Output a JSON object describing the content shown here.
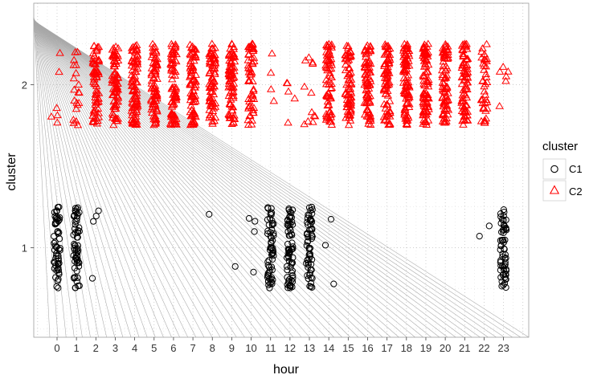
{
  "chart_data": {
    "type": "scatter",
    "xlabel": "hour",
    "ylabel": "cluster",
    "x_ticks": [
      "0",
      "1",
      "2",
      "3",
      "4",
      "5",
      "6",
      "7",
      "8",
      "9",
      "10",
      "11",
      "12",
      "13",
      "14",
      "15",
      "16",
      "17",
      "18",
      "19",
      "20",
      "21",
      "22",
      "23"
    ],
    "y_ticks": [
      "1",
      "2"
    ],
    "xlim": [
      -1.2,
      24.3
    ],
    "ylim": [
      0.45,
      2.5
    ],
    "grid": true,
    "jitter": {
      "x": 0.32,
      "y": 0.25
    },
    "legend": {
      "title": "cluster",
      "position": "right",
      "entries": [
        {
          "label": "C1",
          "shape": "circle",
          "color": "#000000"
        },
        {
          "label": "C2",
          "shape": "triangle",
          "color": "#ff0000"
        }
      ]
    },
    "series": [
      {
        "name": "C1",
        "y": 1,
        "color": "#000000",
        "shape": "circle",
        "counts_by_hour": {
          "0": 60,
          "1": 60,
          "2": 4,
          "8": 1,
          "9": 1,
          "10": 4,
          "11": 60,
          "12": 70,
          "13": 60,
          "14": 3,
          "22": 2,
          "23": 60
        }
      },
      {
        "name": "C2",
        "y": 2,
        "color": "#ff0000",
        "shape": "triangle",
        "counts_by_hour": {
          "0": 6,
          "1": 20,
          "2": 70,
          "3": 80,
          "4": 90,
          "5": 80,
          "6": 80,
          "7": 80,
          "8": 80,
          "9": 80,
          "10": 60,
          "11": 4,
          "12": 5,
          "13": 12,
          "14": 70,
          "15": 70,
          "16": 80,
          "17": 80,
          "18": 90,
          "19": 90,
          "20": 80,
          "21": 80,
          "22": 40,
          "23": 6
        }
      }
    ]
  }
}
